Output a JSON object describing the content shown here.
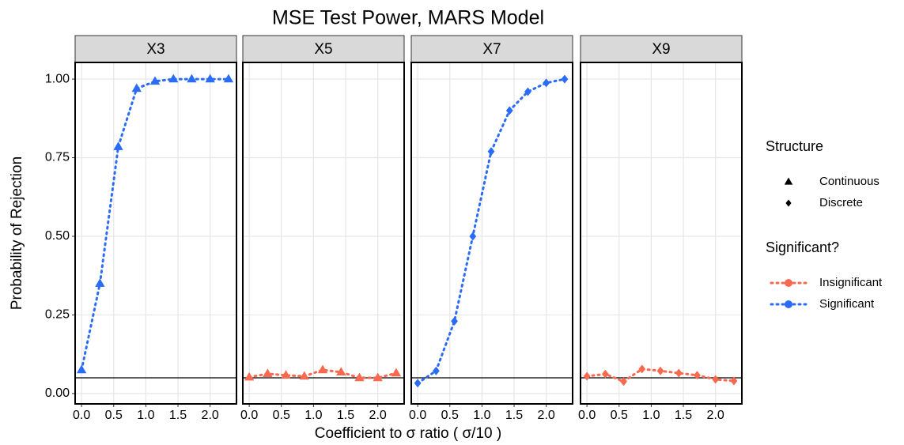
{
  "title": "MSE Test Power, MARS Model",
  "x_label": "Coefficient to σ ratio ( σ/10 )",
  "y_label": "Probability of Rejection",
  "legends": [
    {
      "title": "Structure",
      "entries": [
        {
          "label": "Continuous",
          "marker": "triangle"
        },
        {
          "label": "Discrete",
          "marker": "diamond"
        }
      ]
    },
    {
      "title": "Significant?",
      "entries": [
        {
          "label": "Insignificant",
          "color": "#f8694f"
        },
        {
          "label": "Significant",
          "color": "#2a6cf5"
        }
      ]
    }
  ],
  "chart_data": [
    {
      "type": "line",
      "title": "X3",
      "marker": "triangle",
      "x": [
        0,
        0.286,
        0.571,
        0.857,
        1.143,
        1.429,
        1.714,
        2.0,
        2.286
      ],
      "series": [
        {
          "name": "Significant",
          "color": "#2a6cf5",
          "values": [
            0.075,
            0.35,
            0.785,
            0.97,
            0.993,
            1.0,
            1.0,
            1.0,
            1.0
          ]
        }
      ],
      "hline": 0.05,
      "xlim": [
        -0.1,
        2.41
      ],
      "ylim": [
        -0.033,
        1.053
      ],
      "xticks": [
        {
          "value": 0,
          "label": "0.0"
        },
        {
          "value": 0.5,
          "label": "0.5"
        },
        {
          "value": 1,
          "label": "1.0"
        },
        {
          "value": 1.5,
          "label": "1.5"
        },
        {
          "value": 2,
          "label": "2.0"
        }
      ],
      "yticks": [
        {
          "value": 0,
          "label": "0.00"
        },
        {
          "value": 0.25,
          "label": "0.25"
        },
        {
          "value": 0.5,
          "label": "0.50"
        },
        {
          "value": 0.75,
          "label": "0.75"
        },
        {
          "value": 1,
          "label": "1.00"
        }
      ],
      "grid": true
    },
    {
      "type": "line",
      "title": "X5",
      "marker": "triangle",
      "x": [
        0,
        0.286,
        0.571,
        0.857,
        1.143,
        1.429,
        1.714,
        2.0,
        2.286
      ],
      "series": [
        {
          "name": "Insignificant",
          "color": "#f8694f",
          "values": [
            0.052,
            0.063,
            0.058,
            0.055,
            0.075,
            0.068,
            0.05,
            0.05,
            0.065
          ]
        }
      ],
      "hline": 0.05,
      "xlim": [
        -0.1,
        2.41
      ],
      "ylim": [
        -0.033,
        1.053
      ],
      "xticks": [
        {
          "value": 0,
          "label": "0.0"
        },
        {
          "value": 0.5,
          "label": "0.5"
        },
        {
          "value": 1,
          "label": "1.0"
        },
        {
          "value": 1.5,
          "label": "1.5"
        },
        {
          "value": 2,
          "label": "2.0"
        }
      ],
      "yticks": [
        {
          "value": 0,
          "label": "0.00"
        },
        {
          "value": 0.25,
          "label": "0.25"
        },
        {
          "value": 0.5,
          "label": "0.50"
        },
        {
          "value": 0.75,
          "label": "0.75"
        },
        {
          "value": 1,
          "label": "1.00"
        }
      ],
      "grid": true
    },
    {
      "type": "line",
      "title": "X7",
      "marker": "diamond",
      "x": [
        0,
        0.286,
        0.571,
        0.857,
        1.143,
        1.429,
        1.714,
        2.0,
        2.286
      ],
      "series": [
        {
          "name": "Significant",
          "color": "#2a6cf5",
          "values": [
            0.033,
            0.072,
            0.23,
            0.5,
            0.77,
            0.9,
            0.96,
            0.988,
            1.0
          ]
        }
      ],
      "hline": 0.05,
      "xlim": [
        -0.1,
        2.41
      ],
      "ylim": [
        -0.033,
        1.053
      ],
      "xticks": [
        {
          "value": 0,
          "label": "0.0"
        },
        {
          "value": 0.5,
          "label": "0.5"
        },
        {
          "value": 1,
          "label": "1.0"
        },
        {
          "value": 1.5,
          "label": "1.5"
        },
        {
          "value": 2,
          "label": "2.0"
        }
      ],
      "yticks": [
        {
          "value": 0,
          "label": "0.00"
        },
        {
          "value": 0.25,
          "label": "0.25"
        },
        {
          "value": 0.5,
          "label": "0.50"
        },
        {
          "value": 0.75,
          "label": "0.75"
        },
        {
          "value": 1,
          "label": "1.00"
        }
      ],
      "grid": true
    },
    {
      "type": "line",
      "title": "X9",
      "marker": "diamond",
      "x": [
        0,
        0.286,
        0.571,
        0.857,
        1.143,
        1.429,
        1.714,
        2.0,
        2.286
      ],
      "series": [
        {
          "name": "Insignificant",
          "color": "#f8694f",
          "values": [
            0.055,
            0.062,
            0.038,
            0.078,
            0.072,
            0.065,
            0.058,
            0.045,
            0.04
          ]
        }
      ],
      "hline": 0.05,
      "xlim": [
        -0.1,
        2.41
      ],
      "ylim": [
        -0.033,
        1.053
      ],
      "xticks": [
        {
          "value": 0,
          "label": "0.0"
        },
        {
          "value": 0.5,
          "label": "0.5"
        },
        {
          "value": 1,
          "label": "1.0"
        },
        {
          "value": 1.5,
          "label": "1.5"
        },
        {
          "value": 2,
          "label": "2.0"
        }
      ],
      "yticks": [
        {
          "value": 0,
          "label": "0.00"
        },
        {
          "value": 0.25,
          "label": "0.25"
        },
        {
          "value": 0.5,
          "label": "0.50"
        },
        {
          "value": 0.75,
          "label": "0.75"
        },
        {
          "value": 1,
          "label": "1.00"
        }
      ],
      "grid": true
    }
  ]
}
